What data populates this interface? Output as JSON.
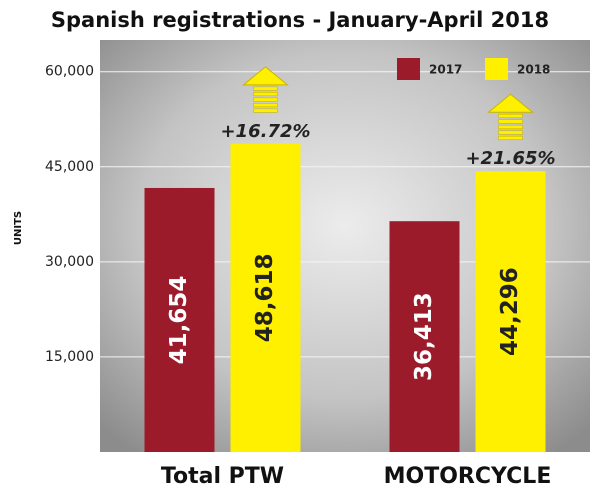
{
  "chart_data": {
    "type": "bar",
    "title": "Spanish registrations - January-April 2018",
    "y_label": "UNITS",
    "categories": [
      "Total PTW",
      "MOTORCYCLE"
    ],
    "series": [
      {
        "name": "2017",
        "color": "#9b1b2a",
        "values": [
          41654,
          36413
        ],
        "value_labels": [
          "41,654",
          "36,413"
        ]
      },
      {
        "name": "2018",
        "color": "#fff000",
        "values": [
          48618,
          44296
        ],
        "value_labels": [
          "48,618",
          "44,296"
        ]
      }
    ],
    "annotations": [
      "+16.72%",
      "+21.65%"
    ],
    "ylim": [
      0,
      65000
    ],
    "yticks": [
      {
        "value": 15000,
        "label": "15,000"
      },
      {
        "value": 30000,
        "label": "30,000"
      },
      {
        "value": 45000,
        "label": "45,000"
      },
      {
        "value": 60000,
        "label": "60,000"
      }
    ],
    "grid": true,
    "legend": "top-right"
  }
}
